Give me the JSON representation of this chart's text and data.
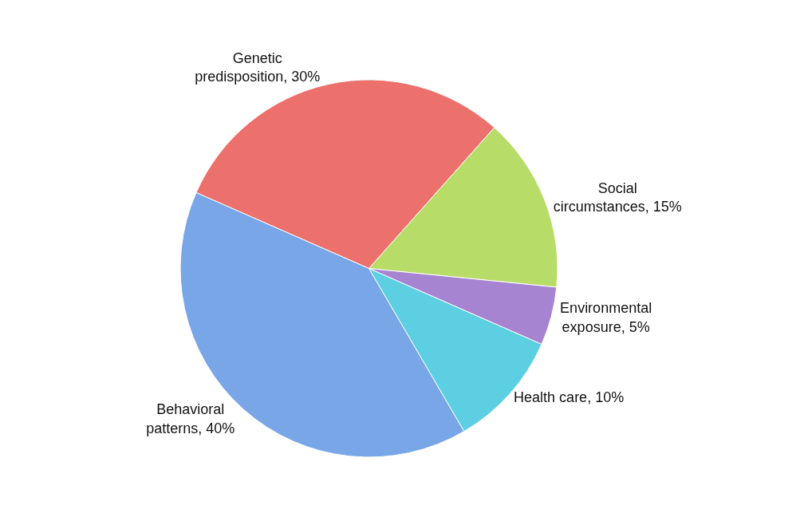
{
  "chart_data": {
    "type": "pie",
    "categories": [
      "Genetic predisposition",
      "Social circumstances",
      "Environmental exposure",
      "Health care",
      "Behavioral patterns"
    ],
    "values": [
      30,
      15,
      5,
      10,
      40
    ],
    "value_labels": [
      "30%",
      "15%",
      "5%",
      "10%",
      "40%"
    ],
    "colors": [
      "#ec706b",
      "#b8dc68",
      "#a784d2",
      "#5ccfe3",
      "#78a6e6"
    ],
    "legend": false
  }
}
